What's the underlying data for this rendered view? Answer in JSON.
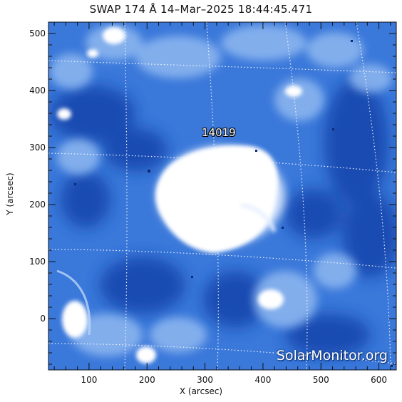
{
  "title": "SWAP 174 Å 14–Mar–2025 18:44:45.471",
  "x_axis": {
    "label": "X (arcsec)",
    "ticks": [
      "100",
      "200",
      "300",
      "400",
      "500",
      "600"
    ],
    "tick_values": [
      100,
      200,
      300,
      400,
      500,
      600
    ],
    "range": [
      30,
      630
    ]
  },
  "y_axis": {
    "label": "Y (arcsec)",
    "ticks": [
      "0",
      "100",
      "200",
      "300",
      "400",
      "500"
    ],
    "tick_values": [
      0,
      100,
      200,
      300,
      400,
      500
    ],
    "range": [
      -90,
      520
    ]
  },
  "annotations": {
    "active_region": "14019"
  },
  "watermark": "SolarMonitor.org",
  "colors": {
    "background_blue": "#2e6fd6",
    "dark_blue": "#0e3c9e",
    "bright_region": "#ffffff",
    "grid_line": "#ffffff"
  }
}
